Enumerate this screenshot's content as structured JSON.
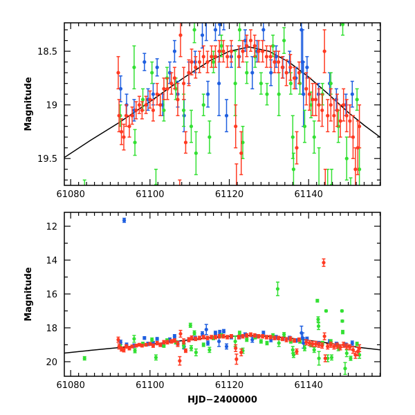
{
  "chart_data": [
    {
      "type": "scatter",
      "panel": "top",
      "ylabel": "Magnitude",
      "xlabel": "",
      "xlim": [
        61078.4,
        61158.1
      ],
      "ylim": [
        19.75,
        18.235
      ],
      "y_inverted": true,
      "xticks": [
        "61080",
        "61100",
        "61120",
        "61140"
      ],
      "yticks": [
        "18.5",
        "19",
        "19.5"
      ]
    },
    {
      "type": "scatter",
      "panel": "bottom",
      "ylabel": "Magnitude",
      "xlabel": "HJD−2400000",
      "xlim": [
        61078.4,
        61158.1
      ],
      "ylim": [
        20.86,
        11.18
      ],
      "y_inverted": true,
      "xticks": [
        "61080",
        "61100",
        "61120",
        "61140"
      ],
      "yticks": [
        "12",
        "14",
        "16",
        "18",
        "20"
      ]
    }
  ],
  "model_curve": {
    "color": "#000000",
    "x": [
      61078,
      61085,
      61092,
      61100,
      61108,
      61115,
      61120,
      61125,
      61130,
      61135,
      61140,
      61145,
      61150,
      61154,
      61158
    ],
    "y": [
      19.5,
      19.33,
      19.17,
      18.97,
      18.76,
      18.59,
      18.5,
      18.46,
      18.5,
      18.6,
      18.74,
      18.9,
      19.07,
      19.19,
      19.3
    ]
  },
  "series": [
    {
      "name": "blue",
      "color": "#1f5fe0",
      "points": [
        [
          61092.6,
          18.85,
          0.12
        ],
        [
          61093.5,
          11.65,
          0.12
        ],
        [
          61094.1,
          19.0,
          0.1
        ],
        [
          61096.0,
          19.05,
          0.1
        ],
        [
          61098.6,
          18.6,
          0.08
        ],
        [
          61099.5,
          18.95,
          0.1
        ],
        [
          61100.8,
          18.9,
          0.1
        ],
        [
          61101.8,
          18.65,
          0.08
        ],
        [
          61103.2,
          19.0,
          0.1
        ],
        [
          61105.0,
          18.7,
          0.1
        ],
        [
          61106.2,
          18.5,
          0.1
        ],
        [
          61107.0,
          18.9,
          0.12
        ],
        [
          61108.6,
          19.1,
          0.15
        ],
        [
          61109.8,
          18.7,
          0.1
        ],
        [
          61111.4,
          18.6,
          0.1
        ],
        [
          61113.2,
          18.35,
          0.12
        ],
        [
          61114.2,
          18.1,
          0.3
        ],
        [
          61114.6,
          18.9,
          0.12
        ],
        [
          61116.5,
          18.3,
          0.1
        ],
        [
          61117.4,
          18.8,
          0.3
        ],
        [
          61117.6,
          18.25,
          0.1
        ],
        [
          61118.6,
          18.2,
          0.1
        ],
        [
          61119.3,
          19.1,
          0.15
        ],
        [
          61120.5,
          18.55,
          0.1
        ],
        [
          61122.5,
          18.55,
          0.1
        ],
        [
          61124.0,
          18.4,
          0.1
        ],
        [
          61125.8,
          18.7,
          0.15
        ],
        [
          61127.0,
          18.5,
          0.1
        ],
        [
          61128.6,
          18.3,
          0.1
        ],
        [
          61130.5,
          18.7,
          0.12
        ],
        [
          61131.8,
          18.55,
          0.1
        ],
        [
          61133.5,
          18.65,
          0.1
        ],
        [
          61135.2,
          18.6,
          0.1
        ],
        [
          61136.8,
          18.75,
          0.1
        ],
        [
          61138.2,
          18.3,
          0.4
        ],
        [
          61138.5,
          18.6,
          0.3
        ],
        [
          61138.7,
          18.9,
          0.3
        ],
        [
          61139.6,
          18.65,
          0.1
        ],
        [
          61142.5,
          18.9,
          0.1
        ],
        [
          61145.3,
          18.8,
          0.1
        ],
        [
          61147.0,
          18.95,
          0.1
        ],
        [
          61149.4,
          19.0,
          0.1
        ],
        [
          61151.0,
          18.9,
          0.12
        ]
      ]
    },
    {
      "name": "green",
      "color": "#33e033",
      "points": [
        [
          61083.5,
          19.8,
          0.1
        ],
        [
          61092.5,
          19.1,
          0.1
        ],
        [
          61096.0,
          18.65,
          0.2
        ],
        [
          61096.2,
          19.35,
          0.12
        ],
        [
          61098.2,
          18.95,
          0.1
        ],
        [
          61100.5,
          18.7,
          0.1
        ],
        [
          61101.5,
          19.75,
          0.15
        ],
        [
          61103.5,
          19.05,
          0.1
        ],
        [
          61104.3,
          18.75,
          0.1
        ],
        [
          61106.5,
          18.85,
          0.1
        ],
        [
          61108.5,
          19.05,
          0.15
        ],
        [
          61110.2,
          17.85,
          0.12
        ],
        [
          61110.4,
          19.2,
          0.15
        ],
        [
          61111.2,
          18.3,
          0.12
        ],
        [
          61111.6,
          19.45,
          0.2
        ],
        [
          61113.5,
          19.0,
          0.1
        ],
        [
          61115.0,
          19.3,
          0.15
        ],
        [
          61116.0,
          18.6,
          0.1
        ],
        [
          61118.0,
          18.45,
          0.1
        ],
        [
          61121.5,
          18.8,
          0.3
        ],
        [
          61122.6,
          18.3,
          0.1
        ],
        [
          61123.4,
          19.35,
          0.15
        ],
        [
          61124.4,
          18.7,
          0.1
        ],
        [
          61126.5,
          18.55,
          0.1
        ],
        [
          61128.0,
          18.8,
          0.1
        ],
        [
          61129.5,
          18.9,
          0.1
        ],
        [
          61131.0,
          18.45,
          0.1
        ],
        [
          61132.2,
          15.7,
          0.4
        ],
        [
          61132.5,
          18.9,
          0.2
        ],
        [
          61133.8,
          18.4,
          0.12
        ],
        [
          61135.5,
          18.8,
          0.1
        ],
        [
          61136.0,
          19.3,
          0.2
        ],
        [
          61136.2,
          19.6,
          0.15
        ],
        [
          61137.8,
          18.8,
          0.1
        ],
        [
          61139.0,
          19.2,
          0.15
        ],
        [
          61140.6,
          19.0,
          0.12
        ],
        [
          61141.4,
          19.3,
          0.15
        ],
        [
          61142.2,
          16.4,
          0.08
        ],
        [
          61142.4,
          17.5,
          0.15
        ],
        [
          61142.5,
          17.9,
          0.2
        ],
        [
          61142.6,
          19.8,
          0.4
        ],
        [
          61143.5,
          18.9,
          0.1
        ],
        [
          61144.4,
          17.0,
          0.05
        ],
        [
          61144.8,
          19.8,
          0.2
        ],
        [
          61145.6,
          18.8,
          0.1
        ],
        [
          61145.8,
          19.75,
          0.15
        ],
        [
          61147.5,
          19.2,
          0.15
        ],
        [
          61148.4,
          17.0,
          0.05
        ],
        [
          61148.5,
          17.6,
          0.06
        ],
        [
          61148.6,
          18.25,
          0.1
        ],
        [
          61149.2,
          20.4,
          0.35
        ],
        [
          61149.6,
          19.5,
          0.2
        ],
        [
          61150.6,
          19.8,
          0.12
        ],
        [
          61152.2,
          18.95,
          0.1
        ],
        [
          61152.8,
          19.6,
          0.2
        ]
      ]
    },
    {
      "name": "red",
      "color": "#ff3a22",
      "points": [
        [
          61092.0,
          18.7,
          0.15
        ],
        [
          61092.2,
          19.1,
          0.15
        ],
        [
          61092.8,
          19.25,
          0.12
        ],
        [
          61093.4,
          19.3,
          0.12
        ],
        [
          61094.0,
          19.1,
          0.1
        ],
        [
          61094.8,
          19.2,
          0.1
        ],
        [
          61095.5,
          19.1,
          0.08
        ],
        [
          61096.5,
          19.05,
          0.08
        ],
        [
          61097.3,
          19.0,
          0.08
        ],
        [
          61098.0,
          19.05,
          0.08
        ],
        [
          61099.0,
          19.0,
          0.08
        ],
        [
          61100.0,
          18.95,
          0.08
        ],
        [
          61100.8,
          19.05,
          0.1
        ],
        [
          61101.8,
          18.9,
          0.1
        ],
        [
          61102.6,
          19.0,
          0.1
        ],
        [
          61103.5,
          18.85,
          0.1
        ],
        [
          61104.4,
          18.85,
          0.1
        ],
        [
          61105.4,
          18.8,
          0.1
        ],
        [
          61106.2,
          18.75,
          0.1
        ],
        [
          61107.0,
          18.95,
          0.15
        ],
        [
          61107.5,
          19.95,
          0.25
        ],
        [
          61107.7,
          18.35,
          0.2
        ],
        [
          61108.5,
          18.8,
          0.15
        ],
        [
          61109.0,
          19.35,
          0.1
        ],
        [
          61109.8,
          18.7,
          0.12
        ],
        [
          61110.5,
          18.6,
          0.12
        ],
        [
          61111.5,
          18.65,
          0.1
        ],
        [
          61112.5,
          18.6,
          0.1
        ],
        [
          61113.5,
          18.55,
          0.1
        ],
        [
          61114.5,
          18.6,
          0.1
        ],
        [
          61115.5,
          18.55,
          0.1
        ],
        [
          61116.5,
          18.55,
          0.1
        ],
        [
          61117.5,
          18.5,
          0.1
        ],
        [
          61118.5,
          18.5,
          0.1
        ],
        [
          61119.5,
          18.55,
          0.1
        ],
        [
          61120.5,
          18.5,
          0.1
        ],
        [
          61121.6,
          19.2,
          0.2
        ],
        [
          61121.8,
          19.85,
          0.3
        ],
        [
          61122.4,
          18.55,
          0.1
        ],
        [
          61123.0,
          19.45,
          0.2
        ],
        [
          61123.4,
          18.5,
          0.1
        ],
        [
          61124.4,
          18.45,
          0.1
        ],
        [
          61125.4,
          18.4,
          0.1
        ],
        [
          61126.4,
          18.45,
          0.1
        ],
        [
          61127.4,
          18.5,
          0.1
        ],
        [
          61128.4,
          18.5,
          0.1
        ],
        [
          61129.4,
          18.55,
          0.1
        ],
        [
          61130.4,
          18.55,
          0.1
        ],
        [
          61131.4,
          18.6,
          0.1
        ],
        [
          61132.4,
          18.6,
          0.1
        ],
        [
          61133.4,
          18.65,
          0.1
        ],
        [
          61134.4,
          18.7,
          0.12
        ],
        [
          61135.4,
          18.65,
          0.12
        ],
        [
          61136.4,
          18.75,
          0.1
        ],
        [
          61137.0,
          19.4,
          0.15
        ],
        [
          61137.6,
          18.7,
          0.1
        ],
        [
          61139.4,
          18.85,
          0.15
        ],
        [
          61140.2,
          18.9,
          0.15
        ],
        [
          61141.0,
          18.95,
          0.15
        ],
        [
          61141.8,
          18.95,
          0.15
        ],
        [
          61142.6,
          19.0,
          0.15
        ],
        [
          61143.4,
          19.05,
          0.15
        ],
        [
          61143.8,
          14.15,
          0.22
        ],
        [
          61144.0,
          18.5,
          0.2
        ],
        [
          61144.2,
          19.8,
          0.2
        ],
        [
          61144.8,
          19.1,
          0.15
        ],
        [
          61145.6,
          19.0,
          0.15
        ],
        [
          61146.4,
          19.1,
          0.15
        ],
        [
          61147.2,
          19.05,
          0.15
        ],
        [
          61148.0,
          19.15,
          0.15
        ],
        [
          61148.8,
          19.0,
          0.15
        ],
        [
          61149.6,
          19.1,
          0.15
        ],
        [
          61150.4,
          19.15,
          0.15
        ],
        [
          61151.2,
          19.3,
          0.2
        ],
        [
          61151.8,
          19.6,
          0.2
        ],
        [
          61152.4,
          19.4,
          0.25
        ],
        [
          61152.8,
          19.2,
          0.2
        ]
      ]
    }
  ]
}
